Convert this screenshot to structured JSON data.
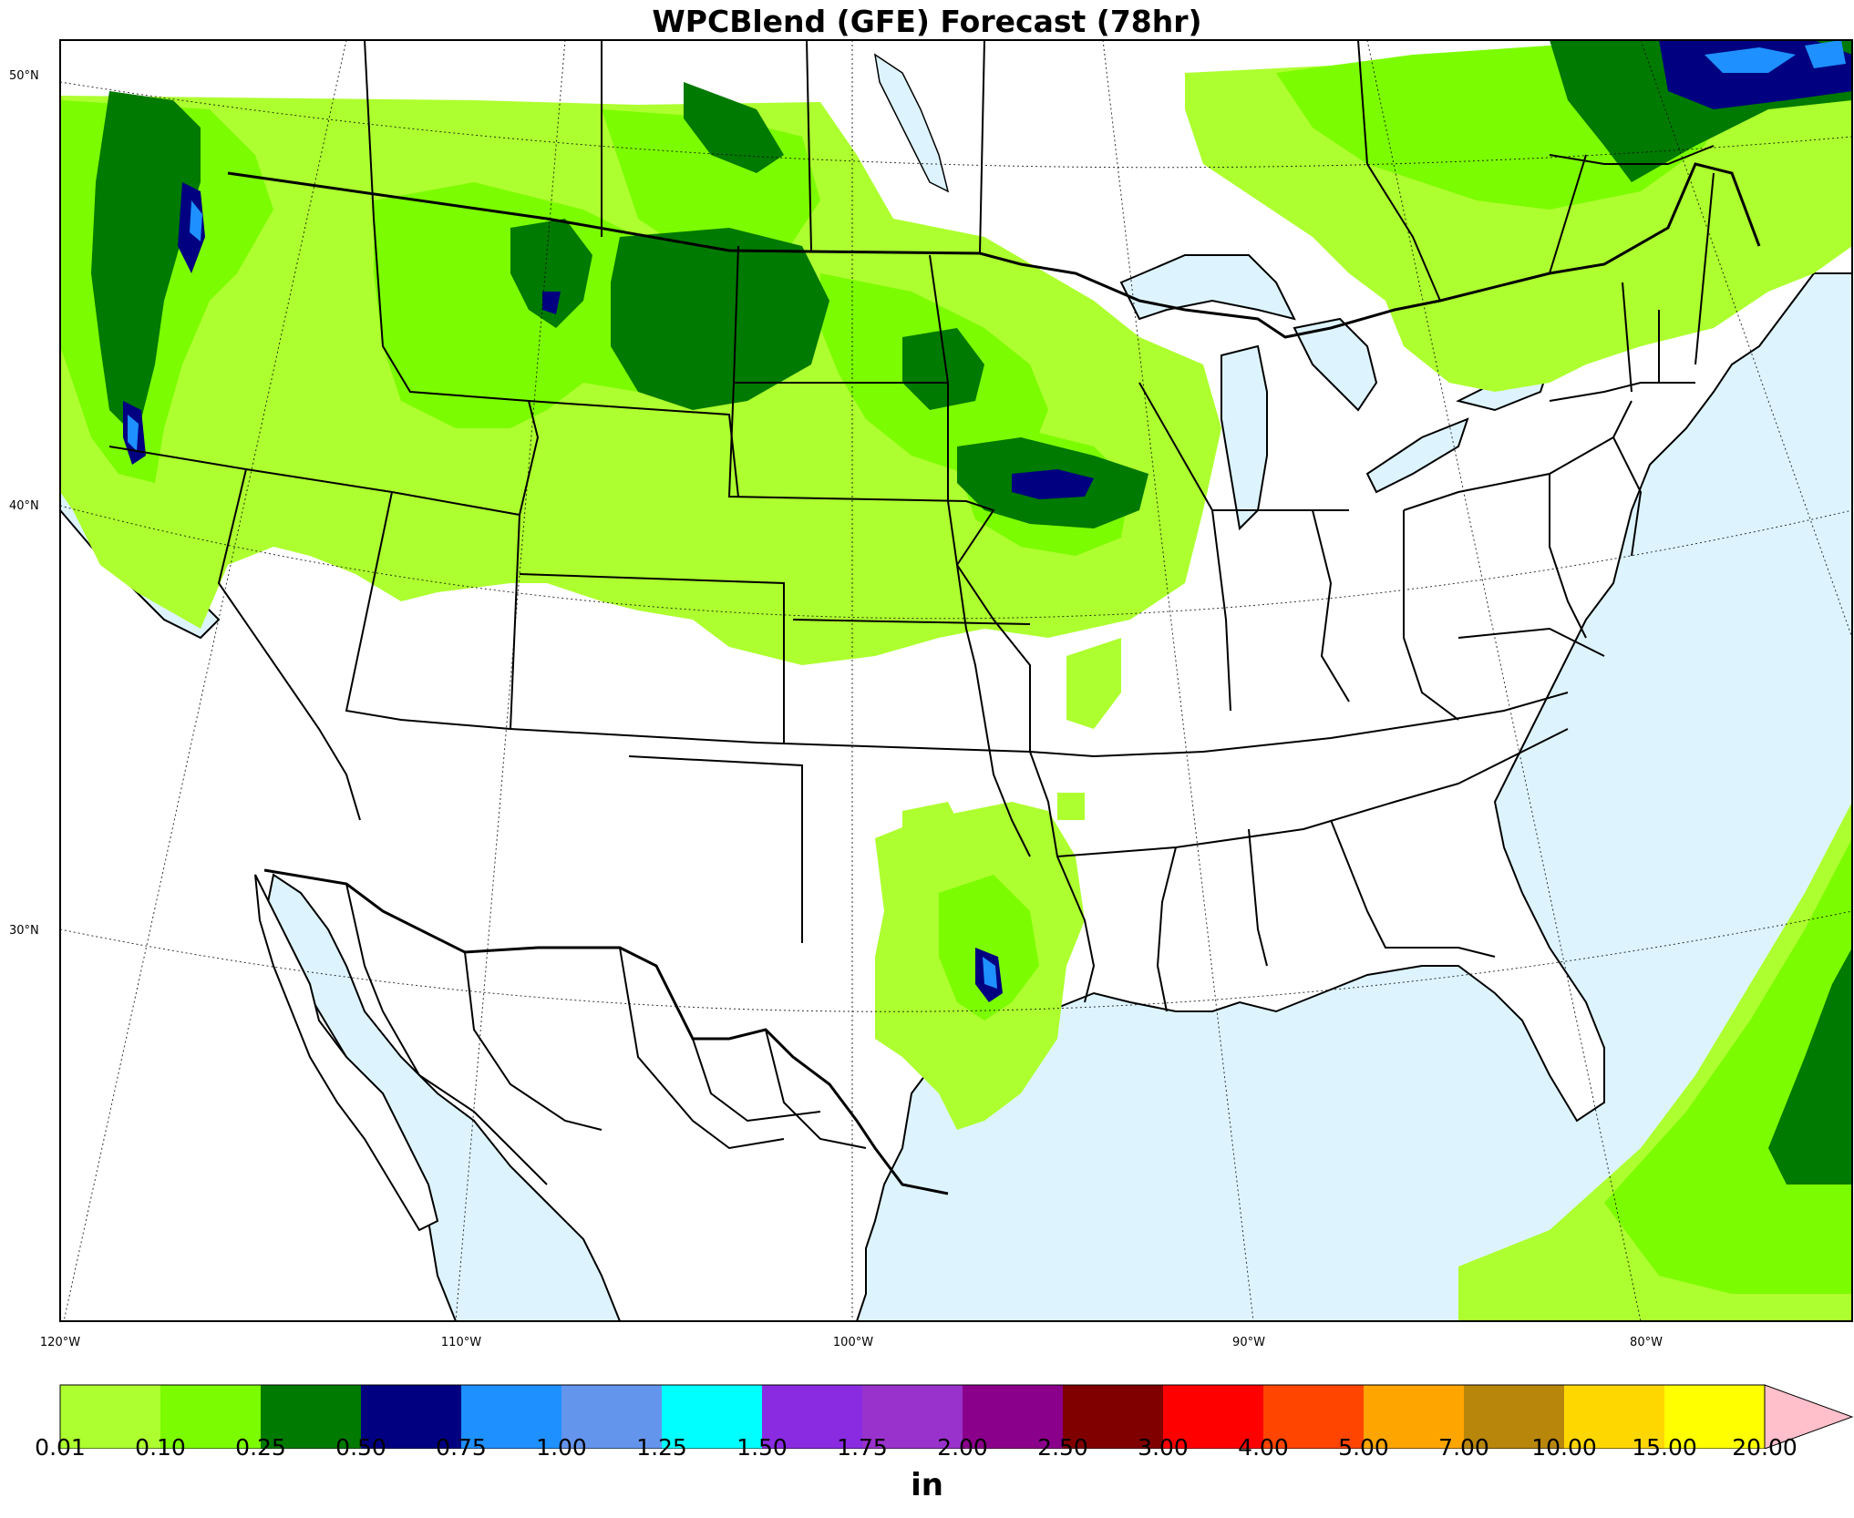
{
  "title": "WPCBlend (GFE) Forecast (78hr)",
  "units": "in",
  "lat_labels": [
    "50°N",
    "40°N",
    "30°N"
  ],
  "lon_labels": [
    "120°W",
    "110°W",
    "100°W",
    "90°W",
    "80°W"
  ],
  "colorbar": {
    "ticks": [
      "0.01",
      "0.10",
      "0.25",
      "0.50",
      "0.75",
      "1.00",
      "1.25",
      "1.50",
      "1.75",
      "2.00",
      "2.50",
      "3.00",
      "4.00",
      "5.00",
      "7.00",
      "10.00",
      "15.00",
      "20.00"
    ],
    "colors": [
      "#adff2f",
      "#7cfc00",
      "#007a00",
      "#000080",
      "#1e90ff",
      "#6495ed",
      "#00ffff",
      "#8a2be2",
      "#9932cc",
      "#8b008b",
      "#800000",
      "#ff0000",
      "#ff4500",
      "#ffa500",
      "#b8860b",
      "#ffd700",
      "#ffff00"
    ],
    "extend_color": "#ffc0cb"
  },
  "colors": {
    "ocean": "#ddf4ff",
    "land": "#ffffff",
    "border": "#000000"
  },
  "precip_regions": [
    {
      "name": "pacific-northwest",
      "level": "0.25-0.50"
    },
    {
      "name": "cascades-peaks",
      "level": "1.00-1.25"
    },
    {
      "name": "northern-rockies",
      "level": "0.25-0.50"
    },
    {
      "name": "northern-plains",
      "level": "0.25-0.50"
    },
    {
      "name": "iowa-band",
      "level": "0.50-0.75"
    },
    {
      "name": "east-texas",
      "level": "1.00-1.25"
    },
    {
      "name": "atlantic-offshore",
      "level": "0.25-0.50"
    },
    {
      "name": "quebec",
      "level": "0.75-1.00"
    }
  ]
}
